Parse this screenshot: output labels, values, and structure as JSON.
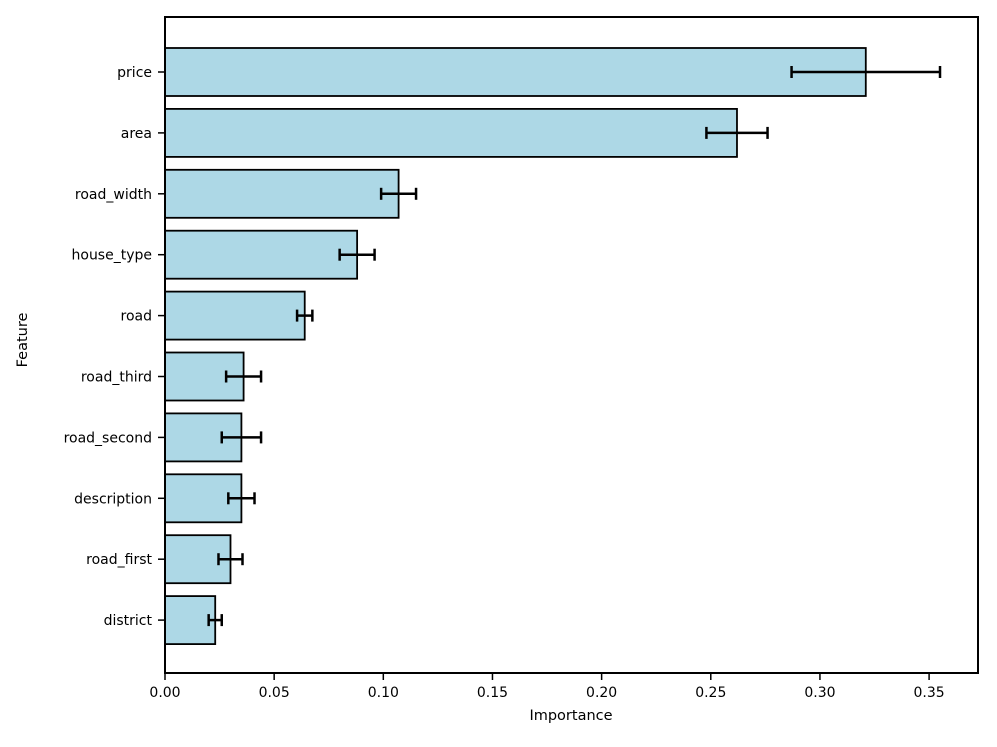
{
  "chart_data": {
    "type": "bar",
    "orientation": "horizontal",
    "title": "",
    "xlabel": "Importance",
    "ylabel": "Feature",
    "xlim": [
      0,
      0.3724
    ],
    "xticks": [
      0,
      0.05,
      0.1,
      0.15,
      0.2,
      0.25,
      0.3,
      0.35
    ],
    "xtick_labels": [
      "0.00",
      "0.05",
      "0.10",
      "0.15",
      "0.20",
      "0.25",
      "0.30",
      "0.35"
    ],
    "grid": false,
    "legend": false,
    "bar_color": "#ADD8E6",
    "bar_edge_color": "#000000",
    "errorbar_color": "#000000",
    "categories": [
      "price",
      "area",
      "road_width",
      "house_type",
      "road",
      "road_third",
      "road_second",
      "description",
      "road_first",
      "district"
    ],
    "values": [
      0.321,
      0.262,
      0.107,
      0.088,
      0.064,
      0.036,
      0.035,
      0.035,
      0.03,
      0.023
    ],
    "errors": [
      0.034,
      0.014,
      0.008,
      0.008,
      0.0035,
      0.008,
      0.009,
      0.006,
      0.0055,
      0.003
    ]
  }
}
